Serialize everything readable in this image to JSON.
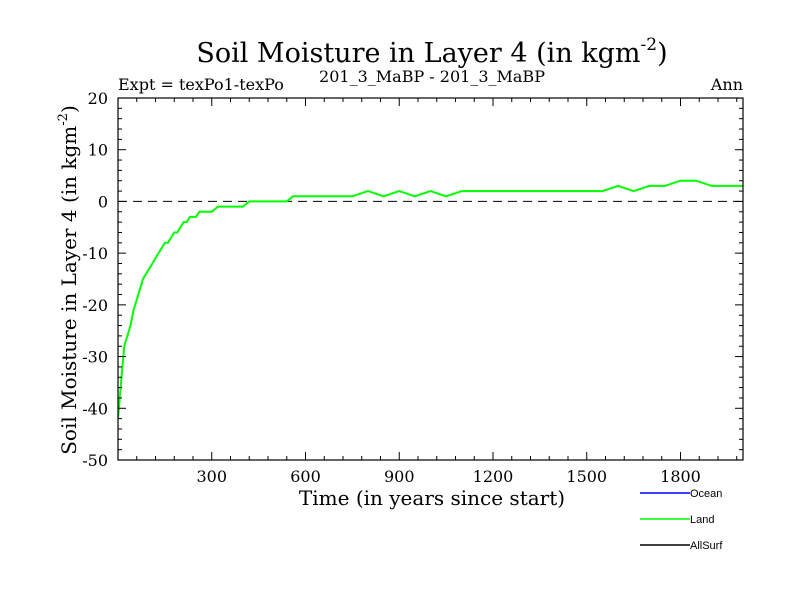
{
  "chart_data": {
    "type": "line",
    "title": "Soil Moisture in Layer 4 (in kgm",
    "title_superscript": "-2",
    "title_close": ")",
    "subtitle_left": "Expt = texPo1-texPo",
    "subtitle_center": "201_3_MaBP - 201_3_MaBP",
    "subtitle_right": "Ann",
    "xlabel": "Time (in years since start)",
    "ylabel": "Soil Moisture in Layer 4 (in kgm",
    "ylabel_superscript": "-2",
    "ylabel_close": ")",
    "xlim": [
      0,
      2000
    ],
    "ylim": [
      -50,
      20
    ],
    "x_ticks": [
      300,
      600,
      900,
      1200,
      1500,
      1800
    ],
    "y_ticks": [
      -50,
      -40,
      -30,
      -20,
      -10,
      0,
      10,
      20
    ],
    "reference_line_y": 0,
    "series": [
      {
        "name": "Land",
        "color": "#00ff00",
        "x": [
          0,
          10,
          20,
          30,
          40,
          50,
          60,
          70,
          80,
          90,
          100,
          110,
          120,
          130,
          140,
          150,
          160,
          170,
          180,
          190,
          200,
          210,
          220,
          230,
          240,
          250,
          260,
          270,
          280,
          290,
          300,
          320,
          340,
          360,
          380,
          400,
          420,
          440,
          460,
          480,
          500,
          520,
          540,
          560,
          580,
          600,
          650,
          700,
          750,
          800,
          850,
          900,
          950,
          1000,
          1050,
          1100,
          1150,
          1200,
          1250,
          1300,
          1350,
          1400,
          1450,
          1500,
          1550,
          1600,
          1650,
          1700,
          1750,
          1800,
          1850,
          1900,
          1950,
          2000
        ],
        "values": [
          -42,
          -35,
          -28,
          -26,
          -24,
          -21,
          -19,
          -17,
          -15,
          -14,
          -13,
          -12,
          -11,
          -10,
          -9,
          -8,
          -8,
          -7,
          -6,
          -6,
          -5,
          -4,
          -4,
          -3,
          -3,
          -3,
          -2,
          -2,
          -2,
          -2,
          -2,
          -1,
          -1,
          -1,
          -1,
          -1,
          0,
          0,
          0,
          0,
          0,
          0,
          0,
          1,
          1,
          1,
          1,
          1,
          1,
          2,
          1,
          2,
          1,
          2,
          1,
          2,
          2,
          2,
          2,
          2,
          2,
          2,
          2,
          2,
          2,
          3,
          2,
          3,
          3,
          4,
          4,
          3,
          3,
          3
        ]
      }
    ],
    "legend": [
      {
        "label": "Ocean",
        "color": "#0000ff"
      },
      {
        "label": "Land",
        "color": "#00ff00"
      },
      {
        "label": "AllSurf",
        "color": "#000000"
      }
    ],
    "legend_placement": "bottom-right"
  }
}
